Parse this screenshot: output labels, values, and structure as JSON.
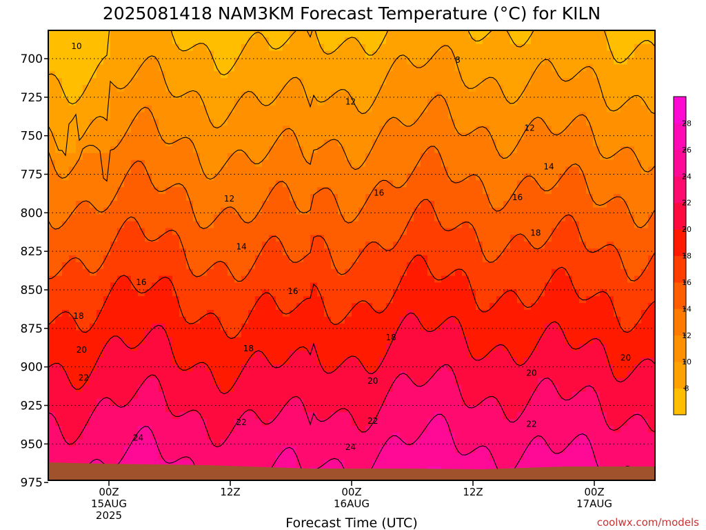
{
  "chart_data": {
    "type": "heatmap",
    "title": "2025081418 NAM3KM Forecast Temperature (°C) for KILN",
    "xlabel": "Forecast Time (UTC)",
    "ylabel": "",
    "y_axis": {
      "scale": "pressure (inverted)",
      "ylim": [
        980,
        683
      ],
      "ticks": [
        700,
        725,
        750,
        775,
        800,
        825,
        850,
        875,
        900,
        925,
        950,
        975
      ]
    },
    "x_axis": {
      "xlim_hours_from_00z_15aug": [
        -6,
        54
      ],
      "ticks": [
        {
          "hour": 0,
          "lines": [
            "00Z",
            "15AUG",
            "2025"
          ]
        },
        {
          "hour": 12,
          "lines": [
            "12Z"
          ]
        },
        {
          "hour": 24,
          "lines": [
            "00Z",
            "16AUG"
          ]
        },
        {
          "hour": 36,
          "lines": [
            "12Z"
          ]
        },
        {
          "hour": 48,
          "lines": [
            "00Z",
            "17AUG"
          ]
        }
      ]
    },
    "grid": "dotted horizontal lines at pressure ticks",
    "surface_pressure_hPa": 977,
    "contour_levels": [
      8,
      10,
      12,
      14,
      16,
      18,
      20,
      22,
      24
    ],
    "contour_labels": [
      {
        "value": "10",
        "hour": -3.2,
        "p": 692
      },
      {
        "value": "8",
        "hour": 34.5,
        "p": 701
      },
      {
        "value": "12",
        "hour": 23.9,
        "p": 728
      },
      {
        "value": "12",
        "hour": 41.6,
        "p": 745
      },
      {
        "value": "14",
        "hour": 43.5,
        "p": 770
      },
      {
        "value": "12",
        "hour": 11.9,
        "p": 791
      },
      {
        "value": "16",
        "hour": 26.7,
        "p": 787
      },
      {
        "value": "16",
        "hour": 40.4,
        "p": 790
      },
      {
        "value": "18",
        "hour": 42.2,
        "p": 813
      },
      {
        "value": "14",
        "hour": 13.1,
        "p": 822
      },
      {
        "value": "16",
        "hour": 3.2,
        "p": 845
      },
      {
        "value": "16",
        "hour": 18.2,
        "p": 851
      },
      {
        "value": "18",
        "hour": -3.0,
        "p": 867
      },
      {
        "value": "18",
        "hour": 27.9,
        "p": 881
      },
      {
        "value": "18",
        "hour": 13.8,
        "p": 888
      },
      {
        "value": "20",
        "hour": -2.7,
        "p": 889
      },
      {
        "value": "20",
        "hour": 51.1,
        "p": 894
      },
      {
        "value": "20",
        "hour": 26.1,
        "p": 909
      },
      {
        "value": "20",
        "hour": 41.8,
        "p": 904
      },
      {
        "value": "22",
        "hour": -2.5,
        "p": 907
      },
      {
        "value": "22",
        "hour": 13.1,
        "p": 936
      },
      {
        "value": "22",
        "hour": 26.1,
        "p": 935
      },
      {
        "value": "22",
        "hour": 41.8,
        "p": 937
      },
      {
        "value": "24",
        "hour": 2.9,
        "p": 946
      },
      {
        "value": "24",
        "hour": 23.9,
        "p": 952
      }
    ],
    "colorbar": {
      "ticks": [
        8,
        10,
        12,
        14,
        16,
        18,
        20,
        22,
        24,
        26,
        28
      ],
      "colors": [
        "#ffbf00",
        "#ffa200",
        "#ff9100",
        "#ff7a00",
        "#ff5e00",
        "#ff3e00",
        "#ff1a00",
        "#ff0a3e",
        "#ff0a6e",
        "#ff0a96",
        "#ff0ab4",
        "#ff0ad2"
      ]
    }
  },
  "credit": "coolwx.com/models"
}
